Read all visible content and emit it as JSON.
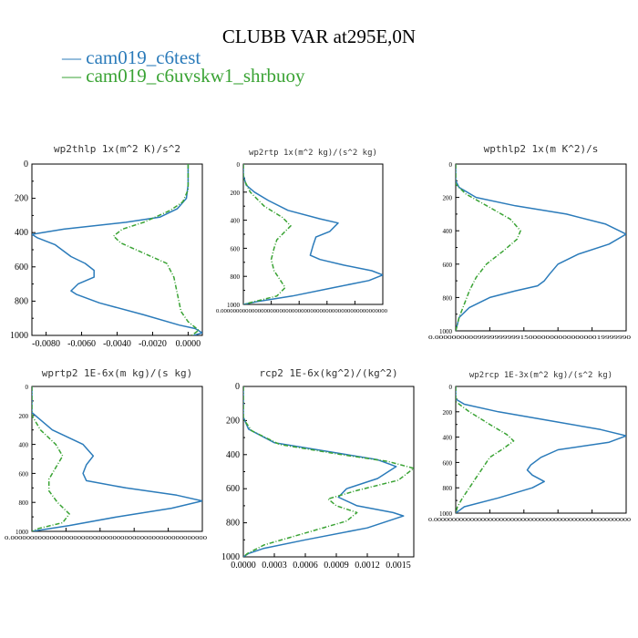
{
  "figure": {
    "title": "CLUBB VAR at295E,0N",
    "legend": [
      {
        "label": "cam019_c6test",
        "color": "#2b7bba"
      },
      {
        "label": "cam019_c6uvskw1_shrbuoy",
        "color": "#3aa334"
      }
    ]
  },
  "chart_data": [
    {
      "type": "line",
      "title": "wp2thlp   1x(m^2 K)/s^2",
      "xlim": [
        -0.0088,
        0.0008
      ],
      "ylim": [
        1000,
        0
      ],
      "xticks": [
        "-0.0080",
        "-0.0060",
        "-0.0040",
        "-0.0020",
        "0.0000"
      ],
      "xtick_values": [
        -0.008,
        -0.006,
        -0.004,
        -0.002,
        0.0
      ],
      "yticks": [
        "0",
        "200",
        "400",
        "600",
        "800",
        "1000"
      ],
      "ytick_values": [
        0,
        200,
        400,
        600,
        800,
        1000
      ],
      "series": [
        {
          "name": "cam019_c6test",
          "points": [
            [
              0,
              0
            ],
            [
              0,
              120
            ],
            [
              -0.0001,
              200
            ],
            [
              -0.0006,
              260
            ],
            [
              -0.0016,
              310
            ],
            [
              -0.0035,
              340
            ],
            [
              -0.007,
              380
            ],
            [
              -0.0088,
              410
            ],
            [
              -0.0085,
              430
            ],
            [
              -0.0075,
              470
            ],
            [
              -0.0066,
              540
            ],
            [
              -0.0058,
              580
            ],
            [
              -0.0053,
              620
            ],
            [
              -0.0053,
              660
            ],
            [
              -0.0062,
              700
            ],
            [
              -0.0066,
              740
            ],
            [
              -0.0063,
              760
            ],
            [
              -0.005,
              810
            ],
            [
              -0.0025,
              880
            ],
            [
              -0.0005,
              940
            ],
            [
              0.0004,
              960
            ],
            [
              0.0008,
              985
            ],
            [
              0.0003,
              1000
            ]
          ]
        },
        {
          "name": "cam019_c6uvskw1_shrbuoy",
          "points": [
            [
              0,
              0
            ],
            [
              0,
              150
            ],
            [
              -0.0003,
              220
            ],
            [
              -0.001,
              270
            ],
            [
              -0.0025,
              340
            ],
            [
              -0.0037,
              380
            ],
            [
              -0.0042,
              420
            ],
            [
              -0.0038,
              460
            ],
            [
              -0.0025,
              520
            ],
            [
              -0.0012,
              580
            ],
            [
              -0.0008,
              660
            ],
            [
              -0.0006,
              760
            ],
            [
              -0.0004,
              860
            ],
            [
              0,
              920
            ],
            [
              0.0006,
              970
            ],
            [
              0.0002,
              1000
            ]
          ]
        }
      ]
    },
    {
      "type": "line",
      "title": "wp2rtp   1x(m^2 kg)/(s^2 kg)",
      "xlim": [
        0,
        1
      ],
      "ylim": [
        1000,
        0
      ],
      "xticks": [
        "0.000000000000000000000000000000000000000000000000000000"
      ],
      "xtick_values": [
        0
      ],
      "yticks": [
        "0",
        "200",
        "400",
        "600",
        "800",
        "1000"
      ],
      "ytick_values": [
        0,
        200,
        400,
        600,
        800,
        1000
      ],
      "series": [
        {
          "name": "cam019_c6test",
          "points": [
            [
              0.0,
              0
            ],
            [
              0.0,
              80
            ],
            [
              0.02,
              150
            ],
            [
              0.08,
              200
            ],
            [
              0.18,
              260
            ],
            [
              0.32,
              330
            ],
            [
              0.55,
              390
            ],
            [
              0.68,
              420
            ],
            [
              0.62,
              480
            ],
            [
              0.52,
              520
            ],
            [
              0.5,
              580
            ],
            [
              0.48,
              650
            ],
            [
              0.55,
              680
            ],
            [
              0.72,
              720
            ],
            [
              0.92,
              760
            ],
            [
              1.0,
              790
            ],
            [
              0.9,
              830
            ],
            [
              0.65,
              880
            ],
            [
              0.35,
              940
            ],
            [
              0.1,
              980
            ],
            [
              0.0,
              1000
            ]
          ]
        },
        {
          "name": "cam019_c6uvskw1_shrbuoy",
          "points": [
            [
              0.0,
              0
            ],
            [
              0.0,
              100
            ],
            [
              0.05,
              200
            ],
            [
              0.15,
              300
            ],
            [
              0.28,
              380
            ],
            [
              0.34,
              440
            ],
            [
              0.3,
              480
            ],
            [
              0.24,
              540
            ],
            [
              0.22,
              600
            ],
            [
              0.2,
              680
            ],
            [
              0.22,
              760
            ],
            [
              0.26,
              820
            ],
            [
              0.3,
              880
            ],
            [
              0.24,
              940
            ],
            [
              0.08,
              980
            ],
            [
              0.0,
              1000
            ]
          ]
        }
      ]
    },
    {
      "type": "line",
      "title": "wpthlp2   1x(m K^2)/s",
      "xlim": [
        0,
        1
      ],
      "ylim": [
        1000,
        0
      ],
      "xticks": [
        "0.0000000000999999999915000000000000000019999990"
      ],
      "xtick_values": [
        0
      ],
      "yticks": [
        "0",
        "200",
        "400",
        "600",
        "800",
        "1000"
      ],
      "ytick_values": [
        0,
        200,
        400,
        600,
        800,
        1000
      ],
      "series": [
        {
          "name": "cam019_c6test",
          "points": [
            [
              0.0,
              0
            ],
            [
              0.0,
              100
            ],
            [
              0.02,
              140
            ],
            [
              0.12,
              200
            ],
            [
              0.35,
              250
            ],
            [
              0.65,
              300
            ],
            [
              0.88,
              360
            ],
            [
              1.0,
              420
            ],
            [
              0.9,
              480
            ],
            [
              0.72,
              540
            ],
            [
              0.6,
              600
            ],
            [
              0.55,
              660
            ],
            [
              0.52,
              700
            ],
            [
              0.48,
              730
            ],
            [
              0.35,
              760
            ],
            [
              0.2,
              800
            ],
            [
              0.08,
              860
            ],
            [
              0.02,
              920
            ],
            [
              0.0,
              1000
            ]
          ]
        },
        {
          "name": "cam019_c6uvskw1_shrbuoy",
          "points": [
            [
              0.0,
              0
            ],
            [
              0.0,
              120
            ],
            [
              0.06,
              180
            ],
            [
              0.2,
              260
            ],
            [
              0.32,
              330
            ],
            [
              0.38,
              400
            ],
            [
              0.36,
              450
            ],
            [
              0.28,
              520
            ],
            [
              0.18,
              600
            ],
            [
              0.12,
              680
            ],
            [
              0.08,
              760
            ],
            [
              0.05,
              840
            ],
            [
              0.02,
              920
            ],
            [
              0.0,
              1000
            ]
          ]
        }
      ]
    },
    {
      "type": "line",
      "title": "wprtp2   1E-6x(m kg)/(s kg)",
      "xlim": [
        0,
        1
      ],
      "ylim": [
        1000,
        0
      ],
      "xticks": [
        "0.00000000000000000000000000000000000000000000000000"
      ],
      "xtick_values": [
        0
      ],
      "yticks": [
        "0",
        "200",
        "400",
        "600",
        "800",
        "1000"
      ],
      "ytick_values": [
        0,
        200,
        400,
        600,
        800,
        1000
      ],
      "series": [
        {
          "name": "cam019_c6test",
          "points": [
            [
              0.0,
              0
            ],
            [
              0.0,
              180
            ],
            [
              0.03,
              210
            ],
            [
              0.12,
              300
            ],
            [
              0.3,
              400
            ],
            [
              0.36,
              480
            ],
            [
              0.32,
              540
            ],
            [
              0.3,
              600
            ],
            [
              0.32,
              650
            ],
            [
              0.55,
              700
            ],
            [
              0.85,
              750
            ],
            [
              1.0,
              790
            ],
            [
              0.82,
              840
            ],
            [
              0.5,
              900
            ],
            [
              0.22,
              960
            ],
            [
              0.0,
              1000
            ]
          ]
        },
        {
          "name": "cam019_c6uvskw1_shrbuoy",
          "points": [
            [
              0.0,
              0
            ],
            [
              0.0,
              200
            ],
            [
              0.05,
              300
            ],
            [
              0.14,
              400
            ],
            [
              0.18,
              480
            ],
            [
              0.14,
              560
            ],
            [
              0.1,
              640
            ],
            [
              0.1,
              720
            ],
            [
              0.15,
              800
            ],
            [
              0.22,
              880
            ],
            [
              0.18,
              940
            ],
            [
              0.04,
              980
            ],
            [
              0.0,
              1000
            ]
          ]
        }
      ]
    },
    {
      "type": "line",
      "title": "rcp2   1E-6x(kg^2)/(kg^2)",
      "xlim": [
        0,
        0.00165
      ],
      "ylim": [
        1000,
        0
      ],
      "xticks": [
        "0.0000",
        "0.0003",
        "0.0006",
        "0.0009",
        "0.0012",
        "0.0015"
      ],
      "xtick_values": [
        0,
        0.0003,
        0.0006,
        0.0009,
        0.0012,
        0.0015
      ],
      "yticks": [
        "0",
        "200",
        "400",
        "600",
        "800",
        "1000"
      ],
      "ytick_values": [
        0,
        200,
        400,
        600,
        800,
        1000
      ],
      "series": [
        {
          "name": "cam019_c6test",
          "points": [
            [
              0,
              0
            ],
            [
              0,
              180
            ],
            [
              5e-05,
              250
            ],
            [
              0.0003,
              330
            ],
            [
              0.0009,
              390
            ],
            [
              0.0013,
              430
            ],
            [
              0.00148,
              470
            ],
            [
              0.0013,
              540
            ],
            [
              0.001,
              600
            ],
            [
              0.00092,
              650
            ],
            [
              0.0011,
              700
            ],
            [
              0.00145,
              740
            ],
            [
              0.00155,
              760
            ],
            [
              0.0012,
              830
            ],
            [
              0.0006,
              900
            ],
            [
              0.0002,
              950
            ],
            [
              5e-05,
              980
            ],
            [
              0,
              1000
            ]
          ]
        },
        {
          "name": "cam019_c6uvskw1_shrbuoy",
          "points": [
            [
              0,
              0
            ],
            [
              0,
              190
            ],
            [
              8e-05,
              260
            ],
            [
              0.00035,
              340
            ],
            [
              0.00095,
              400
            ],
            [
              0.0014,
              440
            ],
            [
              0.00165,
              480
            ],
            [
              0.0015,
              550
            ],
            [
              0.0011,
              610
            ],
            [
              0.00082,
              660
            ],
            [
              0.0009,
              700
            ],
            [
              0.0011,
              740
            ],
            [
              0.001,
              790
            ],
            [
              0.0006,
              860
            ],
            [
              0.0002,
              930
            ],
            [
              4e-05,
              980
            ],
            [
              0,
              1000
            ]
          ]
        }
      ]
    },
    {
      "type": "line",
      "title": "wp2rcp   1E-3x(m^2 kg)/(s^2 kg)",
      "xlim": [
        0,
        1
      ],
      "ylim": [
        1000,
        0
      ],
      "xticks": [
        "0.000000000000000000000000000000000000000000000000000000"
      ],
      "xtick_values": [
        0
      ],
      "yticks": [
        "0",
        "200",
        "400",
        "600",
        "800",
        "1000"
      ],
      "ytick_values": [
        0,
        200,
        400,
        600,
        800,
        1000
      ],
      "series": [
        {
          "name": "cam019_c6test",
          "points": [
            [
              0.0,
              0
            ],
            [
              0.0,
              100
            ],
            [
              0.05,
              140
            ],
            [
              0.25,
              200
            ],
            [
              0.55,
              270
            ],
            [
              0.85,
              340
            ],
            [
              1.0,
              390
            ],
            [
              0.9,
              440
            ],
            [
              0.6,
              500
            ],
            [
              0.5,
              560
            ],
            [
              0.44,
              620
            ],
            [
              0.42,
              660
            ],
            [
              0.45,
              700
            ],
            [
              0.52,
              750
            ],
            [
              0.45,
              800
            ],
            [
              0.25,
              880
            ],
            [
              0.05,
              950
            ],
            [
              0.0,
              1000
            ]
          ]
        },
        {
          "name": "cam019_c6uvskw1_shrbuoy",
          "points": [
            [
              0.0,
              0
            ],
            [
              0.0,
              120
            ],
            [
              0.08,
              200
            ],
            [
              0.2,
              300
            ],
            [
              0.3,
              380
            ],
            [
              0.34,
              430
            ],
            [
              0.28,
              490
            ],
            [
              0.2,
              560
            ],
            [
              0.16,
              640
            ],
            [
              0.12,
              720
            ],
            [
              0.08,
              800
            ],
            [
              0.04,
              880
            ],
            [
              0.01,
              950
            ],
            [
              0.0,
              1000
            ]
          ]
        }
      ]
    }
  ]
}
